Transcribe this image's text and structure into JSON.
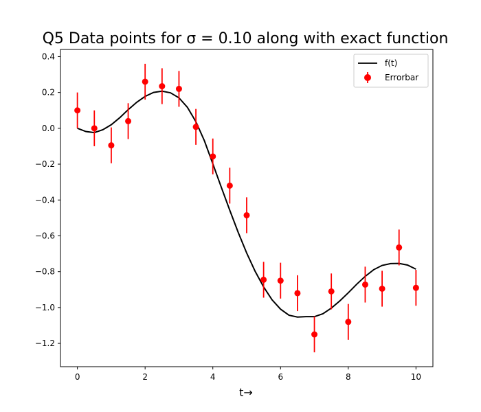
{
  "chart_data": {
    "type": "scatter",
    "title": "Q5 Data points for σ = 0.10 along with exact function",
    "xlabel": "t→",
    "ylabel": "",
    "xlim": [
      -0.5,
      10.5
    ],
    "ylim": [
      -1.33,
      0.44
    ],
    "xticks": [
      0,
      2,
      4,
      6,
      8,
      10
    ],
    "xtick_labels": [
      "0",
      "2",
      "4",
      "6",
      "8",
      "10"
    ],
    "yticks": [
      0.4,
      0.2,
      0.0,
      -0.2,
      -0.4,
      -0.6,
      -0.8,
      -1.0,
      -1.2
    ],
    "ytick_labels": [
      "0.4",
      "0.2",
      "0.0",
      "−0.2",
      "−0.4",
      "−0.6",
      "−0.8",
      "−1.0",
      "−1.2"
    ],
    "grid": false,
    "legend_position": "top-right",
    "series": [
      {
        "name": "f(t)",
        "kind": "line",
        "color": "#000000",
        "x": [
          0,
          0.25,
          0.5,
          0.75,
          1,
          1.25,
          1.5,
          1.75,
          2,
          2.25,
          2.5,
          2.75,
          3,
          3.25,
          3.5,
          3.75,
          4,
          4.25,
          4.5,
          4.75,
          5,
          5.25,
          5.5,
          5.75,
          6,
          6.25,
          6.5,
          6.75,
          7,
          7.25,
          7.5,
          7.75,
          8,
          8.25,
          8.5,
          8.75,
          9,
          9.25,
          9.5,
          9.75,
          10
        ],
        "y": [
          0.0,
          -0.018,
          -0.024,
          -0.008,
          0.02,
          0.059,
          0.104,
          0.145,
          0.178,
          0.2,
          0.207,
          0.198,
          0.17,
          0.117,
          0.037,
          -0.069,
          -0.198,
          -0.329,
          -0.457,
          -0.581,
          -0.696,
          -0.798,
          -0.885,
          -0.957,
          -1.009,
          -1.043,
          -1.053,
          -1.051,
          -1.051,
          -1.035,
          -1.003,
          -0.963,
          -0.918,
          -0.87,
          -0.826,
          -0.789,
          -0.765,
          -0.755,
          -0.754,
          -0.763,
          -0.786
        ]
      },
      {
        "name": "Errorbar",
        "kind": "errorbar",
        "color": "#ff0000",
        "x": [
          0,
          0.5,
          1,
          1.5,
          2,
          2.5,
          3,
          3.5,
          4,
          4.5,
          5,
          5.5,
          6,
          6.5,
          7,
          7.5,
          8,
          8.5,
          9,
          9.5,
          10
        ],
        "y": [
          0.1,
          0.0,
          -0.095,
          0.04,
          0.26,
          0.235,
          0.22,
          0.008,
          -0.157,
          -0.32,
          -0.485,
          -0.845,
          -0.85,
          -0.92,
          -1.15,
          -0.91,
          -1.08,
          -0.872,
          -0.895,
          -0.665,
          -0.89
        ],
        "error": 0.1
      }
    ]
  }
}
